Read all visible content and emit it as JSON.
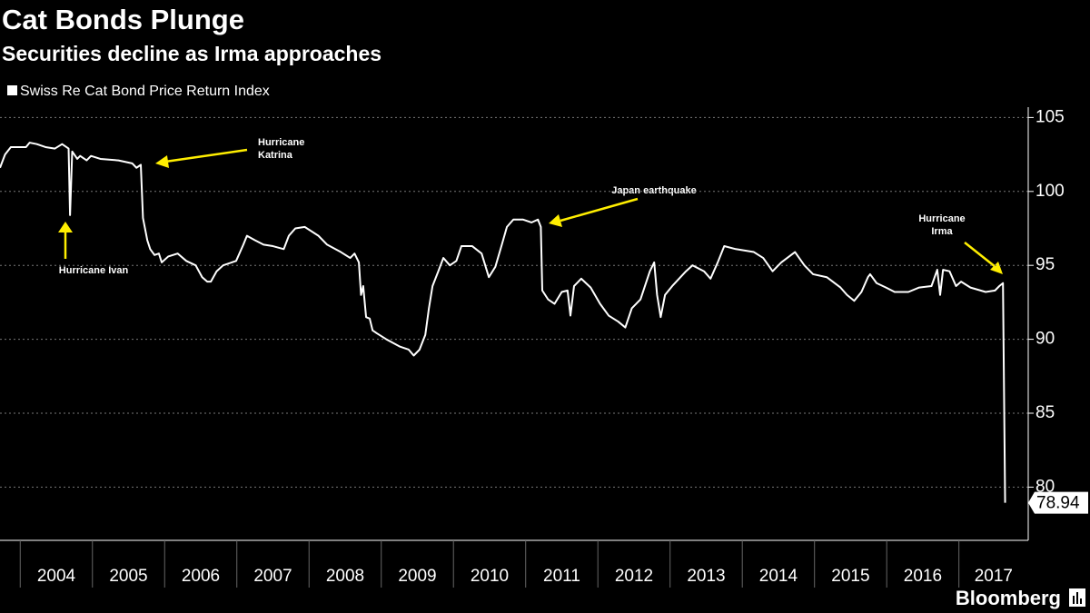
{
  "chart_data": {
    "type": "line",
    "title": "Cat Bonds Plunge",
    "subtitle": "Securities decline as Irma approaches",
    "source": "Bloomberg",
    "xlim": [
      2003.72,
      2017.96
    ],
    "xticks": [
      2004,
      2005,
      2006,
      2007,
      2008,
      2009,
      2010,
      2011,
      2012,
      2013,
      2014,
      2015,
      2016,
      2017
    ],
    "ylim": [
      76.4,
      105.7
    ],
    "yticks": [
      80,
      85,
      90,
      95,
      100,
      105
    ],
    "grid": true,
    "x": [
      2003.72,
      2003.79,
      2003.87,
      2004.0,
      2004.08,
      2004.13,
      2004.23,
      2004.35,
      2004.48,
      2004.58,
      2004.67,
      2004.69,
      2004.72,
      2004.79,
      2004.83,
      2004.92,
      2004.98,
      2005.11,
      2005.36,
      2005.55,
      2005.61,
      2005.67,
      2005.7,
      2005.76,
      2005.8,
      2005.86,
      2005.92,
      2005.96,
      2006.05,
      2006.18,
      2006.3,
      2006.43,
      2006.52,
      2006.59,
      2006.64,
      2006.72,
      2006.81,
      2006.99,
      2007.09,
      2007.14,
      2007.25,
      2007.37,
      2007.5,
      2007.65,
      2007.72,
      2007.81,
      2007.94,
      2008.13,
      2008.25,
      2008.44,
      2008.57,
      2008.63,
      2008.69,
      2008.72,
      2008.75,
      2008.79,
      2008.84,
      2008.88,
      2008.94,
      2009.07,
      2009.26,
      2009.38,
      2009.45,
      2009.53,
      2009.61,
      2009.66,
      2009.71,
      2009.79,
      2009.86,
      2009.95,
      2010.04,
      2010.11,
      2010.26,
      2010.39,
      2010.49,
      2010.58,
      2010.67,
      2010.74,
      2010.83,
      2010.96,
      2011.08,
      2011.17,
      2011.21,
      2011.23,
      2011.31,
      2011.4,
      2011.5,
      2011.58,
      2011.62,
      2011.67,
      2011.77,
      2011.9,
      2012.03,
      2012.15,
      2012.28,
      2012.38,
      2012.47,
      2012.59,
      2012.72,
      2012.78,
      2012.82,
      2012.87,
      2012.93,
      2013.03,
      2013.22,
      2013.31,
      2013.47,
      2013.56,
      2013.66,
      2013.75,
      2013.91,
      2014.16,
      2014.29,
      2014.42,
      2014.54,
      2014.73,
      2014.86,
      2014.98,
      2015.17,
      2015.36,
      2015.45,
      2015.55,
      2015.65,
      2015.74,
      2015.77,
      2015.86,
      2015.99,
      2016.11,
      2016.3,
      2016.45,
      2016.62,
      2016.7,
      2016.74,
      2016.78,
      2016.87,
      2016.96,
      2017.03,
      2017.16,
      2017.37,
      2017.5,
      2017.56,
      2017.61,
      2017.64
    ],
    "series": [
      {
        "name": "Swiss Re Cat Bond Price Return Index",
        "color": "#ffffff",
        "values": [
          101.6,
          102.5,
          103.0,
          103.0,
          103.0,
          103.3,
          103.2,
          103.0,
          102.9,
          103.2,
          102.9,
          98.4,
          102.7,
          102.2,
          102.4,
          102.1,
          102.4,
          102.2,
          102.1,
          101.9,
          101.6,
          101.8,
          98.2,
          96.7,
          96.1,
          95.7,
          95.8,
          95.2,
          95.6,
          95.8,
          95.3,
          95.0,
          94.2,
          93.9,
          93.9,
          94.6,
          95.0,
          95.3,
          96.4,
          97.0,
          96.7,
          96.4,
          96.3,
          96.1,
          97.0,
          97.5,
          97.6,
          97.0,
          96.4,
          95.9,
          95.5,
          95.8,
          95.2,
          93.0,
          93.6,
          91.5,
          91.4,
          90.6,
          90.4,
          90.0,
          89.5,
          89.3,
          88.9,
          89.3,
          90.3,
          92.1,
          93.6,
          94.6,
          95.5,
          95.0,
          95.3,
          96.3,
          96.3,
          95.8,
          94.2,
          94.9,
          96.4,
          97.6,
          98.1,
          98.1,
          97.9,
          98.1,
          97.6,
          93.3,
          92.7,
          92.4,
          93.2,
          93.3,
          91.6,
          93.6,
          94.1,
          93.5,
          92.4,
          91.6,
          91.2,
          90.8,
          92.1,
          92.7,
          94.6,
          95.2,
          93.0,
          91.5,
          93.0,
          93.6,
          94.6,
          95.0,
          94.6,
          94.1,
          95.2,
          96.3,
          96.1,
          95.9,
          95.5,
          94.6,
          95.2,
          95.9,
          95.0,
          94.4,
          94.2,
          93.5,
          93.0,
          92.6,
          93.2,
          94.2,
          94.4,
          93.8,
          93.5,
          93.2,
          93.2,
          93.5,
          93.6,
          94.7,
          93.0,
          94.7,
          94.6,
          93.6,
          93.9,
          93.5,
          93.2,
          93.3,
          93.6,
          93.8,
          78.94
        ]
      }
    ],
    "annotations": [
      {
        "text": [
          "Hurricane Ivan"
        ]
      },
      {
        "text": [
          "Hurricane",
          "Katrina"
        ]
      },
      {
        "text": [
          "Japan earthquake"
        ]
      },
      {
        "text": [
          "Hurricane",
          "Irma"
        ]
      }
    ]
  }
}
